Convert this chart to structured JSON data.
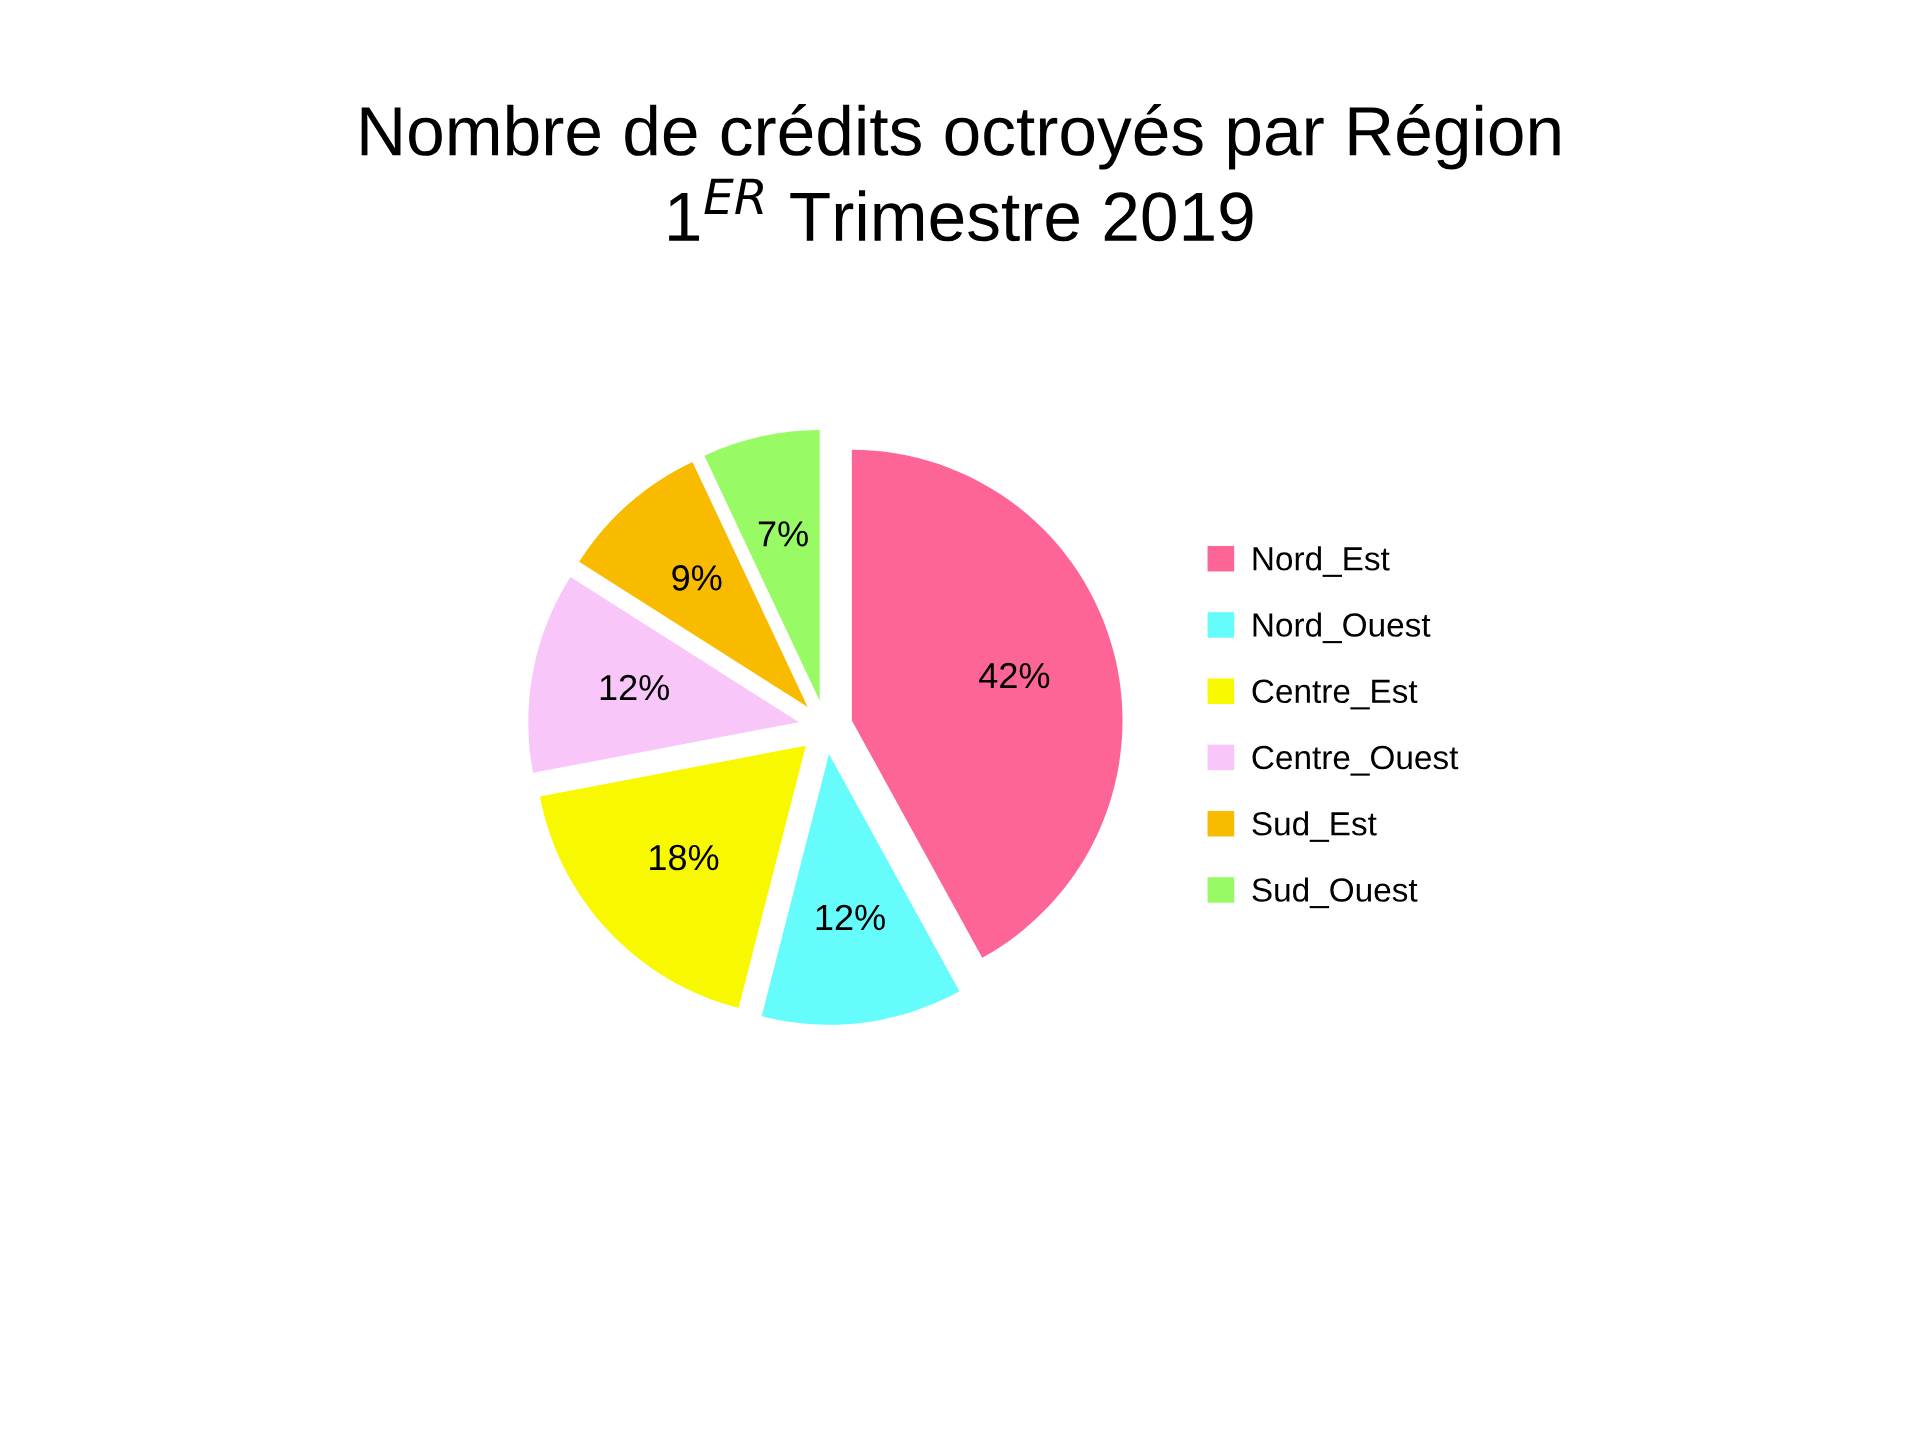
{
  "chart_data": {
    "type": "pie",
    "title": "Nombre de crédits octroyés par Région",
    "subtitle": "1$^{ER}$ Trimestre 2019",
    "categories": [
      "Nord_Est",
      "Nord_Ouest",
      "Centre_Est",
      "Centre_Ouest",
      "Sud_Est",
      "Sud_Ouest"
    ],
    "values": [
      42,
      12,
      18,
      12,
      9,
      7
    ],
    "value_labels": [
      "42%",
      "12%",
      "18%",
      "12%",
      "9%",
      "7%"
    ],
    "colors": [
      "#fd6596",
      "#66fcfc",
      "#f8f800",
      "#f9c6fa",
      "#f9bb00",
      "#98fa65"
    ],
    "legend": "right"
  }
}
